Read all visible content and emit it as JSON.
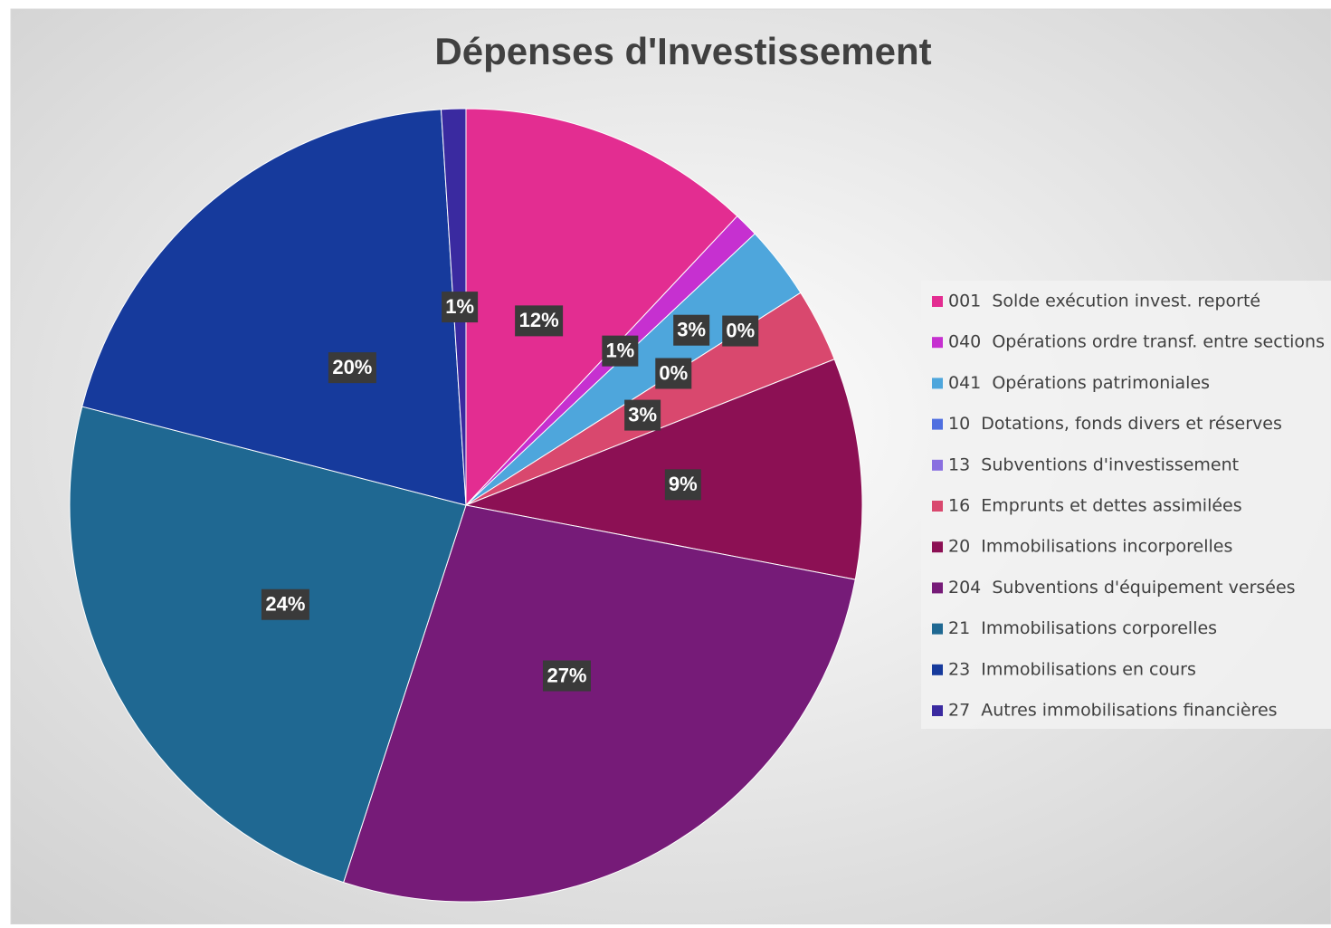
{
  "chart_data": {
    "type": "pie",
    "title": "Dépenses d'Investissement",
    "categories": [
      "001  Solde exécution invest. reporté",
      "040  Opérations ordre transf. entre sections",
      "041  Opérations patrimoniales",
      "10  Dotations, fonds divers et réserves",
      "13  Subventions d'investissement",
      "16  Emprunts et dettes assimilées",
      "20  Immobilisations incorporelles",
      "204  Subventions d'équipement versées",
      "21  Immobilisations corporelles",
      "23  Immobilisations en cours",
      "27  Autres immobilisations financières"
    ],
    "values": [
      12,
      1,
      3,
      0,
      0,
      3,
      9,
      27,
      24,
      20,
      1
    ],
    "value_labels": [
      "12%",
      "1%",
      "3%",
      "0%",
      "0%",
      "3%",
      "9%",
      "27%",
      "24%",
      "20%",
      "1%"
    ],
    "colors": [
      "#e32d91",
      "#c630d0",
      "#4ea6dc",
      "#4f6fe0",
      "#8a6fe0",
      "#d9486e",
      "#8c1054",
      "#761b78",
      "#1f6892",
      "#163a9c",
      "#3a2aa0"
    ],
    "legend": "right"
  }
}
